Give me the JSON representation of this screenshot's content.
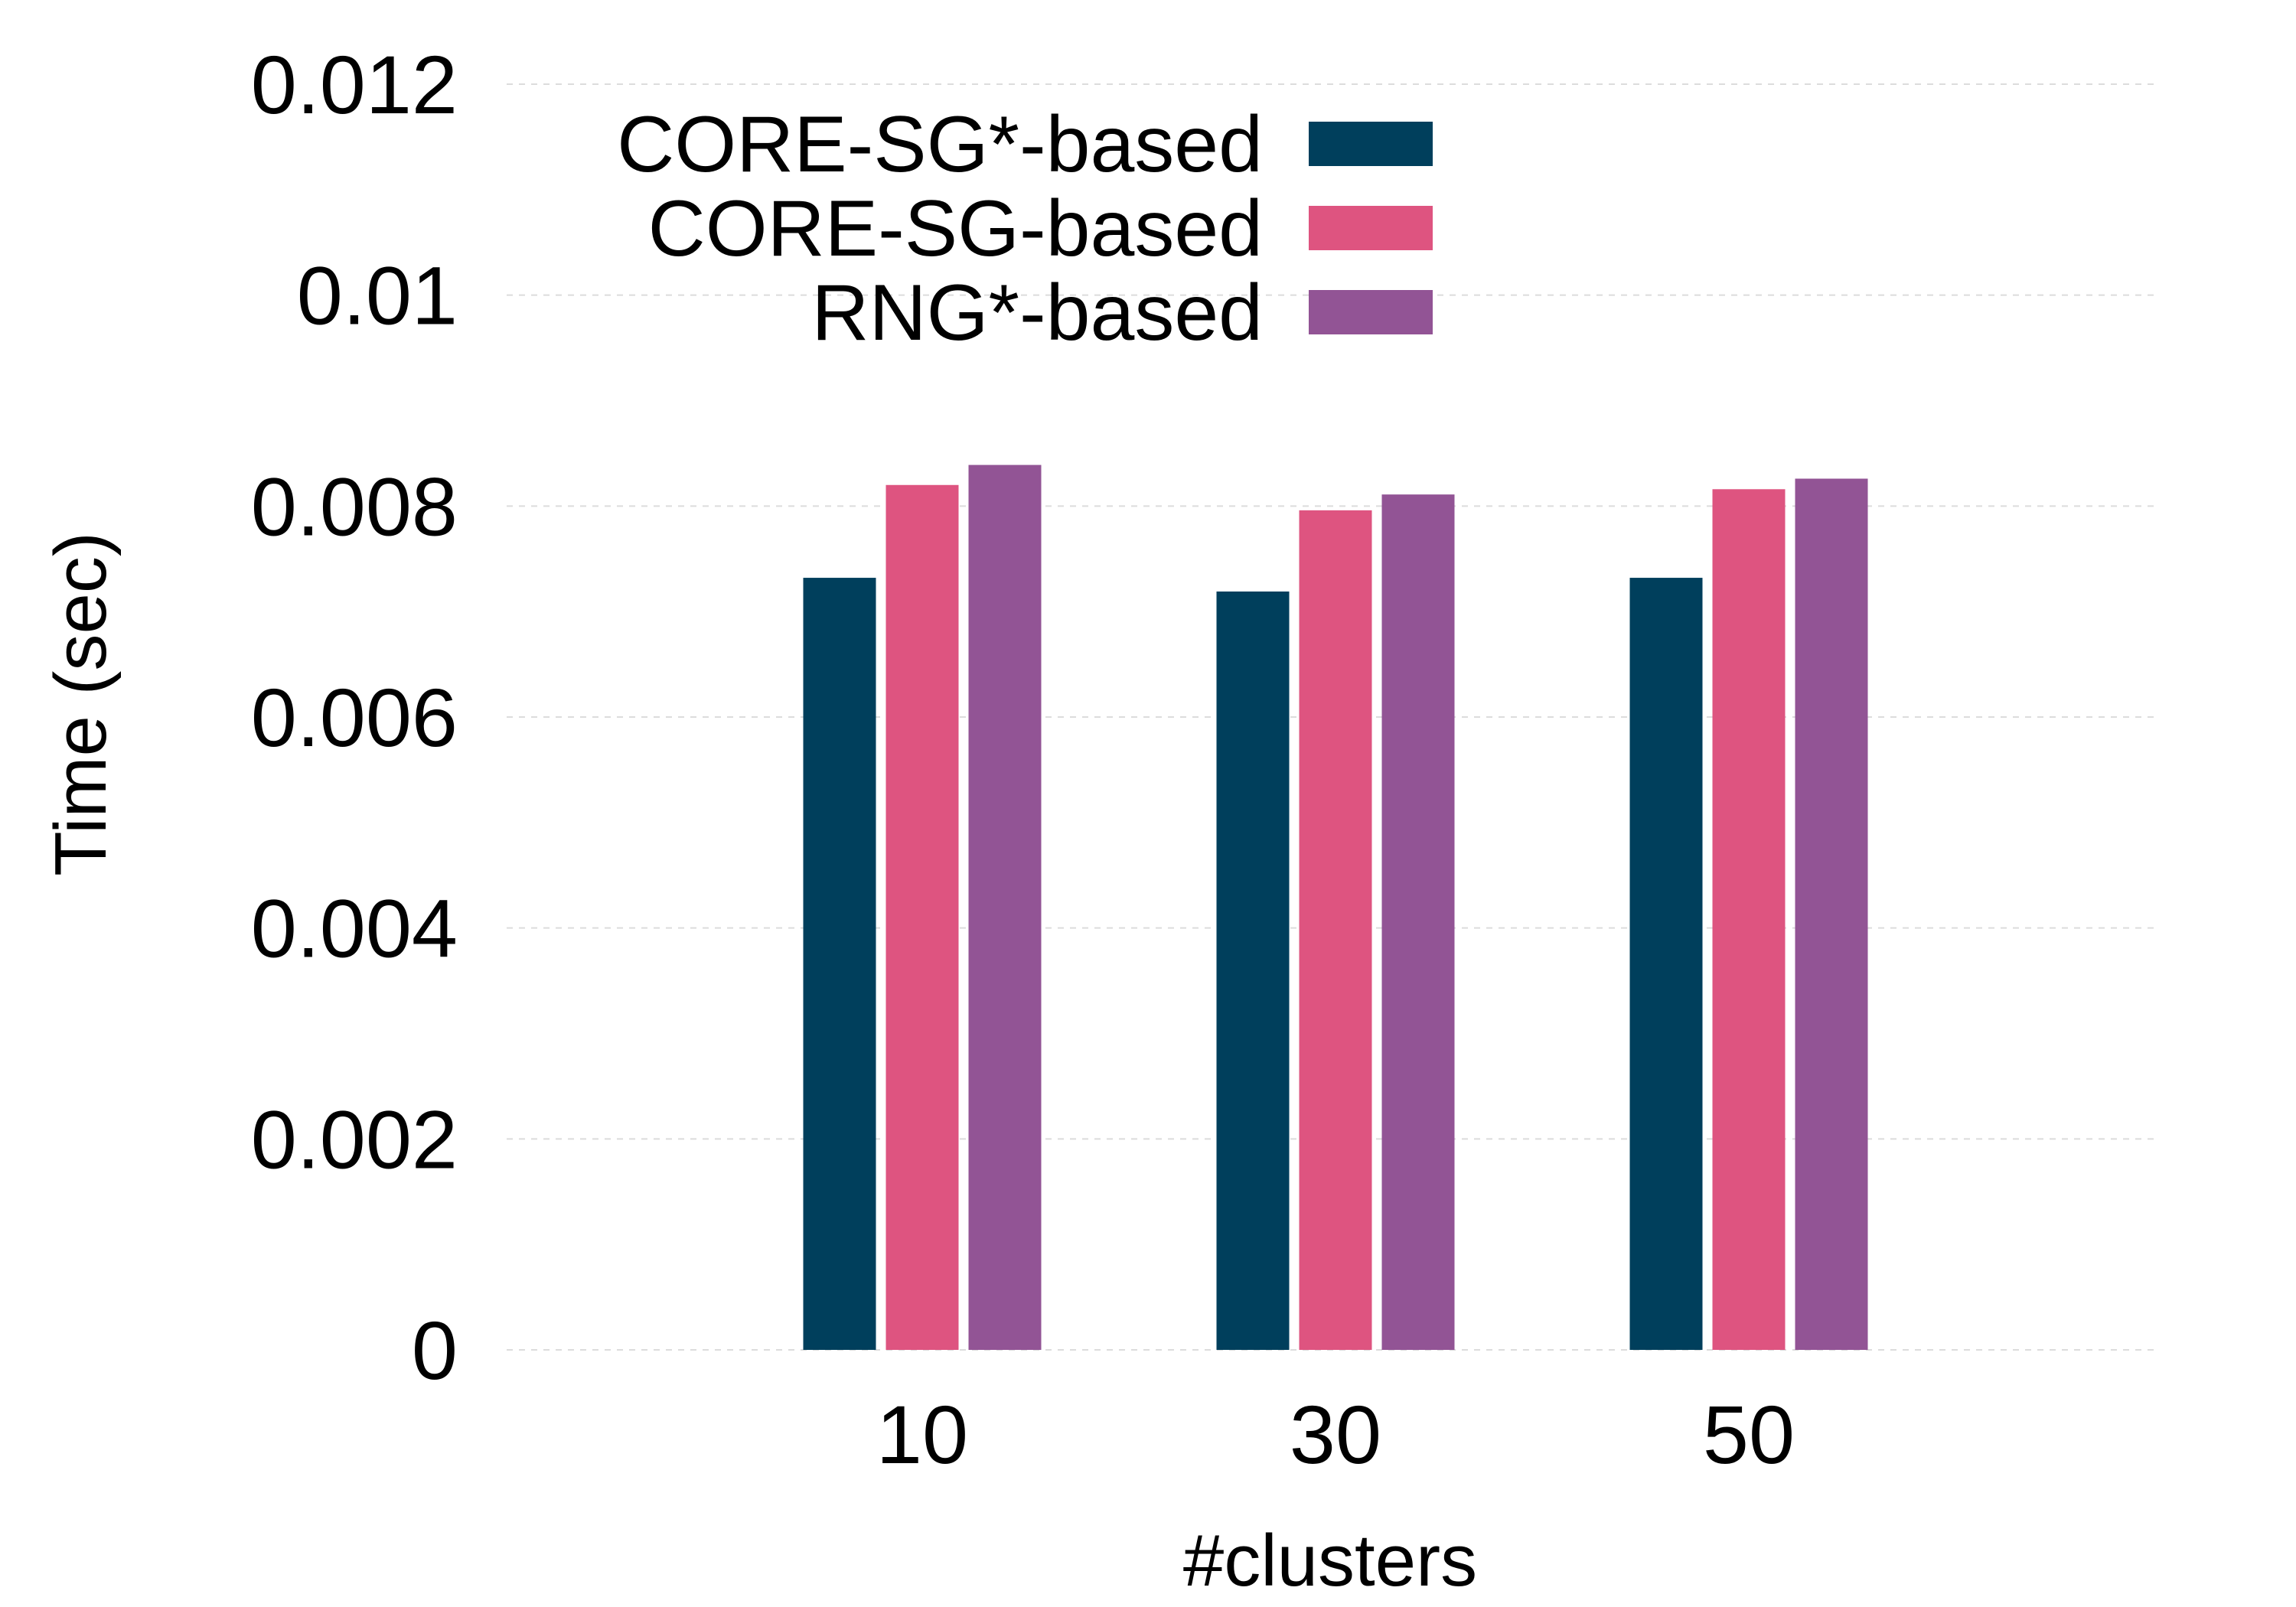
{
  "chart_data": {
    "type": "bar",
    "title": "",
    "xlabel": "#clusters",
    "ylabel": "Time (sec)",
    "categories": [
      "10",
      "30",
      "50"
    ],
    "ylim": [
      0,
      0.012
    ],
    "yticks": [
      "0",
      "0.002",
      "0.004",
      "0.006",
      "0.008",
      "0.01",
      "0.012"
    ],
    "ytick_values": [
      0,
      0.002,
      0.004,
      0.006,
      0.008,
      0.01,
      0.012
    ],
    "grid": true,
    "legend_position": "top-center",
    "series": [
      {
        "name": "CORE-SG*-based",
        "color": "#003f5c",
        "values": [
          0.00732,
          0.00719,
          0.00732
        ]
      },
      {
        "name": "CORE-SG-based",
        "color": "#de5480",
        "values": [
          0.0082,
          0.00796,
          0.00816
        ]
      },
      {
        "name": "RNG*-based",
        "color": "#925495",
        "values": [
          0.00839,
          0.00811,
          0.00826
        ]
      }
    ]
  }
}
